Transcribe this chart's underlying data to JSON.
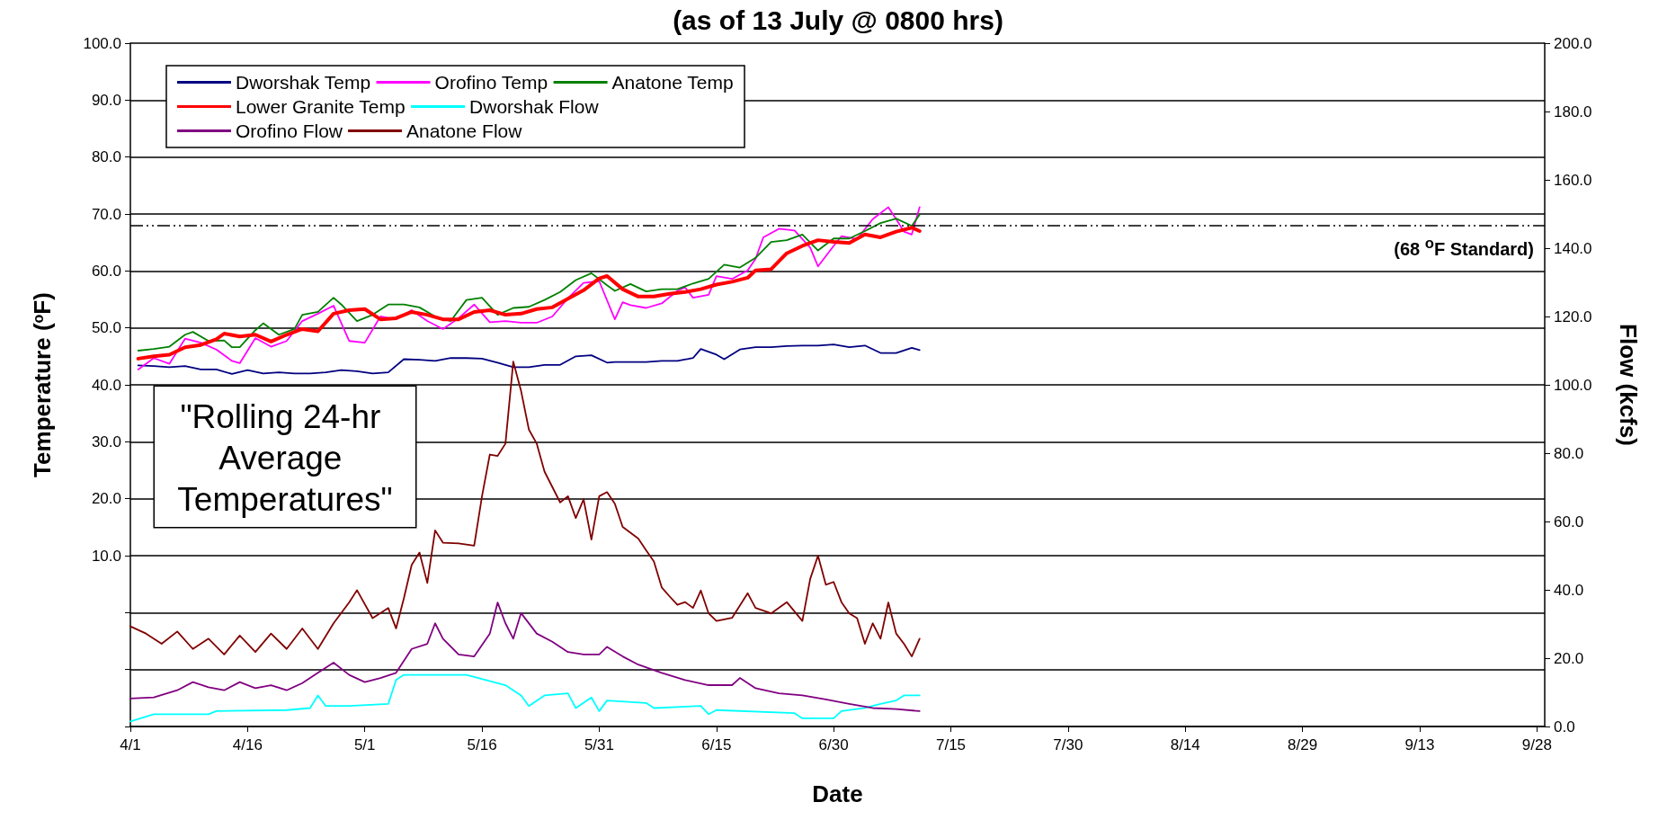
{
  "chart_data": {
    "type": "line",
    "title": "(as of 13 July @ 0800 hrs)",
    "xlabel": "Date",
    "ylabel": "Temperature ($^{o}$F)",
    "y2label": "Flow (kcfs)",
    "xlim": [
      "--04-01",
      "--09-29"
    ],
    "xticks": [
      {
        "value": "--04-01",
        "label": "4/1"
      },
      {
        "value": "--04-16",
        "label": "4/16"
      },
      {
        "value": "--05-01",
        "label": "5/1"
      },
      {
        "value": "--05-16",
        "label": "5/16"
      },
      {
        "value": "--05-31",
        "label": "5/31"
      },
      {
        "value": "--06-15",
        "label": "6/15"
      },
      {
        "value": "--06-30",
        "label": "6/30"
      },
      {
        "value": "--07-15",
        "label": "7/15"
      },
      {
        "value": "--07-30",
        "label": "7/30"
      },
      {
        "value": "--08-14",
        "label": "8/14"
      },
      {
        "value": "--08-29",
        "label": "8/29"
      },
      {
        "value": "--09-13",
        "label": "9/13"
      },
      {
        "value": "--09-28",
        "label": "9/28"
      }
    ],
    "ylim": [
      -20,
      100
    ],
    "yticks": [
      {
        "value": -10,
        "label": null
      },
      {
        "value": 0,
        "label": null
      },
      {
        "value": 10,
        "label": "10.0"
      },
      {
        "value": 20,
        "label": "20.0"
      },
      {
        "value": 30,
        "label": "30.0"
      },
      {
        "value": 40,
        "label": "40.0"
      },
      {
        "value": 50,
        "label": "50.0"
      },
      {
        "value": 60,
        "label": "60.0"
      },
      {
        "value": 70,
        "label": "70.0"
      },
      {
        "value": 80,
        "label": "80.0"
      },
      {
        "value": 90,
        "label": "90.0"
      },
      {
        "value": 100,
        "label": "100.0"
      }
    ],
    "y2lim": [
      0,
      200
    ],
    "y2ticks": [
      {
        "value": 0,
        "label": "0.0"
      },
      {
        "value": 20,
        "label": "20.0"
      },
      {
        "value": 40,
        "label": "40.0"
      },
      {
        "value": 60,
        "label": "60.0"
      },
      {
        "value": 80,
        "label": "80.0"
      },
      {
        "value": 100,
        "label": "100.0"
      },
      {
        "value": 120,
        "label": "120.0"
      },
      {
        "value": 140,
        "label": "140.0"
      },
      {
        "value": 160,
        "label": "160.0"
      },
      {
        "value": 180,
        "label": "180.0"
      },
      {
        "value": 200,
        "label": "200.0"
      }
    ],
    "grid": "y",
    "legend": "top left",
    "ref_lines": [
      {
        "axis": "y",
        "value": 68,
        "label": "(68 $^{o}$F Standard)",
        "line_style": "dashed",
        "color": "#000000"
      }
    ],
    "annotations": [
      "\"Rolling 24-hr Average Temperatures\""
    ],
    "series": [
      {
        "name": "Dworshak Temp",
        "color": "#000080",
        "x": [
          "--04-02",
          "--04-04",
          "--04-06",
          "--04-08",
          "--04-10",
          "--04-12",
          "--04-14",
          "--04-16",
          "--04-18",
          "--04-20",
          "--04-22",
          "--04-24",
          "--04-26",
          "--04-28",
          "--04-30",
          "--05-02",
          "--05-04",
          "--05-06",
          "--05-08",
          "--05-10",
          "--05-12",
          "--05-14",
          "--05-16",
          "--05-18",
          "--05-20",
          "--05-22",
          "--05-24",
          "--05-26",
          "--05-28",
          "--05-30",
          "--06-01",
          "--06-02",
          "--06-04",
          "--06-06",
          "--06-08",
          "--06-10",
          "--06-12",
          "--06-13",
          "--06-15",
          "--06-16",
          "--06-18",
          "--06-20",
          "--06-22",
          "--06-24",
          "--06-26",
          "--06-28",
          "--06-30",
          "--07-02",
          "--07-04",
          "--07-06",
          "--07-08",
          "--07-10",
          "--07-11"
        ],
        "values": [
          43.4,
          43.3,
          43.1,
          43.3,
          42.7,
          42.7,
          41.9,
          42.6,
          42.0,
          42.2,
          42.0,
          42.0,
          42.2,
          42.6,
          42.4,
          42.0,
          42.2,
          44.5,
          44.4,
          44.2,
          44.7,
          44.7,
          44.6,
          43.9,
          43.1,
          43.1,
          43.5,
          43.5,
          45.0,
          45.2,
          43.9,
          44.0,
          44.0,
          44.0,
          44.2,
          44.2,
          44.7,
          46.3,
          45.3,
          44.5,
          46.2,
          46.6,
          46.6,
          46.8,
          46.9,
          46.9,
          47.1,
          46.6,
          46.9,
          45.6,
          45.6,
          46.5,
          46.1
        ]
      },
      {
        "name": "Orofino Temp",
        "color": "#ff00ff",
        "x": [
          "--04-02",
          "--04-04",
          "--04-06",
          "--04-08",
          "--04-10",
          "--04-12",
          "--04-14",
          "--04-15",
          "--04-17",
          "--04-19",
          "--04-21",
          "--04-23",
          "--04-25",
          "--04-27",
          "--04-29",
          "--05-01",
          "--05-03",
          "--05-05",
          "--05-07",
          "--05-09",
          "--05-11",
          "--05-13",
          "--05-15",
          "--05-17",
          "--05-19",
          "--05-21",
          "--05-23",
          "--05-25",
          "--05-27",
          "--05-29",
          "--05-31",
          "--06-02",
          "--06-03",
          "--06-04",
          "--06-06",
          "--06-08",
          "--06-10",
          "--06-11",
          "--06-12",
          "--06-14",
          "--06-15",
          "--06-17",
          "--06-19",
          "--06-20",
          "--06-21",
          "--06-23",
          "--06-25",
          "--06-27",
          "--06-28",
          "--06-30",
          "--07-01",
          "--07-03",
          "--07-05",
          "--07-07",
          "--07-08",
          "--07-09",
          "--07-10",
          "--07-11"
        ],
        "values": [
          42.7,
          44.7,
          43.7,
          48.1,
          47.4,
          46.2,
          44.2,
          43.8,
          48.2,
          46.7,
          47.7,
          51.2,
          52.5,
          53.9,
          47.7,
          47.4,
          52.0,
          51.5,
          53.1,
          51.2,
          49.8,
          51.7,
          54.1,
          51.0,
          51.2,
          50.9,
          50.9,
          52.0,
          55.2,
          57.9,
          58.2,
          51.5,
          54.5,
          54.0,
          53.5,
          54.3,
          56.5,
          57.1,
          55.3,
          55.8,
          59.1,
          58.6,
          60.1,
          62.1,
          65.9,
          67.4,
          67.1,
          64.1,
          60.8,
          64.4,
          66.1,
          65.6,
          69.1,
          71.2,
          69.1,
          66.9,
          66.4,
          71.2
        ]
      },
      {
        "name": "Anatone Temp",
        "color": "#008000",
        "x": [
          "--04-02",
          "--04-04",
          "--04-06",
          "--04-08",
          "--04-09",
          "--04-11",
          "--04-13",
          "--04-14",
          "--04-15",
          "--04-17",
          "--04-18",
          "--04-20",
          "--04-22",
          "--04-23",
          "--04-25",
          "--04-27",
          "--04-28",
          "--04-30",
          "--05-02",
          "--05-04",
          "--05-06",
          "--05-08",
          "--05-10",
          "--05-12",
          "--05-14",
          "--05-16",
          "--05-18",
          "--05-20",
          "--05-22",
          "--05-24",
          "--05-26",
          "--05-28",
          "--05-30",
          "--06-01",
          "--06-02",
          "--06-04",
          "--06-06",
          "--06-08",
          "--06-10",
          "--06-12",
          "--06-14",
          "--06-16",
          "--06-18",
          "--06-20",
          "--06-22",
          "--06-24",
          "--06-26",
          "--06-28",
          "--06-30",
          "--07-02",
          "--07-04",
          "--07-06",
          "--07-08",
          "--07-10",
          "--07-11"
        ],
        "values": [
          46.0,
          46.3,
          46.7,
          48.8,
          49.3,
          47.7,
          47.8,
          46.6,
          46.6,
          49.6,
          50.8,
          48.8,
          49.8,
          52.3,
          52.8,
          55.3,
          54.1,
          51.2,
          52.3,
          54.1,
          54.1,
          53.6,
          52.0,
          51.2,
          54.9,
          55.3,
          52.3,
          53.5,
          53.7,
          54.9,
          56.3,
          58.4,
          59.6,
          57.5,
          56.5,
          57.7,
          56.4,
          56.8,
          56.8,
          57.8,
          58.6,
          61.1,
          60.6,
          62.3,
          65.1,
          65.4,
          66.4,
          63.6,
          65.7,
          65.7,
          67.0,
          68.4,
          69.2,
          67.9,
          69.9
        ]
      },
      {
        "name": "Lower Granite Temp",
        "color": "#ff0000",
        "x": [
          "--04-02",
          "--04-04",
          "--04-06",
          "--04-08",
          "--04-10",
          "--04-12",
          "--04-13",
          "--04-15",
          "--04-17",
          "--04-19",
          "--04-21",
          "--04-23",
          "--04-25",
          "--04-27",
          "--04-29",
          "--05-01",
          "--05-03",
          "--05-05",
          "--05-07",
          "--05-09",
          "--05-11",
          "--05-13",
          "--05-15",
          "--05-17",
          "--05-19",
          "--05-21",
          "--05-23",
          "--05-25",
          "--05-27",
          "--05-29",
          "--05-31",
          "--06-01",
          "--06-03",
          "--06-05",
          "--06-07",
          "--06-09",
          "--06-11",
          "--06-13",
          "--06-15",
          "--06-17",
          "--06-19",
          "--06-20",
          "--06-22",
          "--06-24",
          "--06-26",
          "--06-28",
          "--06-30",
          "--07-02",
          "--07-04",
          "--07-06",
          "--07-08",
          "--07-10",
          "--07-11"
        ],
        "values": [
          44.6,
          45.0,
          45.3,
          46.6,
          47.0,
          48.0,
          49.0,
          48.5,
          48.8,
          47.6,
          48.8,
          49.8,
          49.4,
          52.5,
          53.1,
          53.3,
          51.5,
          51.7,
          52.8,
          52.3,
          51.5,
          51.5,
          52.8,
          53.1,
          52.3,
          52.5,
          53.3,
          53.6,
          55.1,
          56.6,
          58.7,
          59.1,
          56.8,
          55.5,
          55.5,
          56.0,
          56.3,
          56.8,
          57.6,
          58.1,
          58.8,
          60.1,
          60.3,
          63.1,
          64.4,
          65.4,
          65.1,
          64.9,
          66.4,
          65.9,
          66.9,
          67.6,
          67.0
        ]
      },
      {
        "name": "Dworshak Flow",
        "color": "#00ffff",
        "axis": "y2",
        "x": [
          "--04-01",
          "--04-04",
          "--04-11",
          "--04-12",
          "--04-21",
          "--04-24",
          "--04-25",
          "--04-26",
          "--04-29",
          "--05-04",
          "--05-05",
          "--05-06",
          "--05-14",
          "--05-15",
          "--05-19",
          "--05-21",
          "--05-22",
          "--05-24",
          "--05-27",
          "--05-28",
          "--05-30",
          "--05-31",
          "--06-01",
          "--06-06",
          "--06-07",
          "--06-13",
          "--06-14",
          "--06-15",
          "--06-25",
          "--06-26",
          "--06-30",
          "--07-01",
          "--07-04",
          "--07-06",
          "--07-08",
          "--07-09",
          "--07-11"
        ],
        "values": [
          1.5,
          3.6,
          3.6,
          4.5,
          4.8,
          5.4,
          9.1,
          6.0,
          6.0,
          6.6,
          13.6,
          15.1,
          15.1,
          14.5,
          12.1,
          9.1,
          6.0,
          9.1,
          9.7,
          5.4,
          8.5,
          4.5,
          7.6,
          6.9,
          5.4,
          6.0,
          3.6,
          4.8,
          3.9,
          2.4,
          2.4,
          4.5,
          5.4,
          6.6,
          7.6,
          9.1,
          9.1
        ]
      },
      {
        "name": "Orofino Flow",
        "color": "#800080",
        "axis": "y2",
        "x": [
          "--04-01",
          "--04-04",
          "--04-07",
          "--04-09",
          "--04-11",
          "--04-13",
          "--04-15",
          "--04-17",
          "--04-19",
          "--04-21",
          "--04-23",
          "--04-25",
          "--04-27",
          "--04-29",
          "--05-01",
          "--05-03",
          "--05-05",
          "--05-07",
          "--05-09",
          "--05-10",
          "--05-11",
          "--05-13",
          "--05-15",
          "--05-17",
          "--05-18",
          "--05-19",
          "--05-20",
          "--05-21",
          "--05-23",
          "--05-25",
          "--05-27",
          "--05-29",
          "--05-31",
          "--06-01",
          "--06-03",
          "--06-05",
          "--06-08",
          "--06-11",
          "--06-14",
          "--06-17",
          "--06-18",
          "--06-20",
          "--06-23",
          "--06-26",
          "--06-29",
          "--07-02",
          "--07-05",
          "--07-08",
          "--07-11"
        ],
        "values": [
          8.2,
          8.5,
          10.6,
          13.0,
          11.5,
          10.6,
          13.0,
          11.2,
          12.1,
          10.6,
          12.7,
          15.7,
          18.7,
          15.1,
          13.0,
          14.2,
          15.7,
          22.7,
          24.2,
          30.2,
          25.7,
          21.1,
          20.5,
          27.2,
          36.3,
          30.2,
          25.7,
          33.2,
          27.2,
          24.8,
          21.8,
          21.1,
          21.1,
          23.3,
          20.5,
          18.1,
          15.7,
          13.6,
          12.1,
          12.1,
          14.2,
          11.2,
          9.7,
          9.1,
          7.9,
          6.6,
          5.4,
          5.1,
          4.5
        ]
      },
      {
        "name": "Anatone Flow",
        "color": "#800000",
        "axis": "y2",
        "x": [
          "--04-01",
          "--04-03",
          "--04-05",
          "--04-07",
          "--04-09",
          "--04-11",
          "--04-13",
          "--04-15",
          "--04-17",
          "--04-19",
          "--04-21",
          "--04-23",
          "--04-25",
          "--04-27",
          "--04-29",
          "--04-30",
          "--05-02",
          "--05-04",
          "--05-05",
          "--05-06",
          "--05-07",
          "--05-08",
          "--05-09",
          "--05-10",
          "--05-11",
          "--05-13",
          "--05-15",
          "--05-16",
          "--05-17",
          "--05-18",
          "--05-19",
          "--05-20",
          "--05-21",
          "--05-22",
          "--05-23",
          "--05-24",
          "--05-26",
          "--05-27",
          "--05-28",
          "--05-29",
          "--05-30",
          "--05-31",
          "--06-01",
          "--06-02",
          "--06-03",
          "--06-04",
          "--06-05",
          "--06-06",
          "--06-07",
          "--06-08",
          "--06-09",
          "--06-10",
          "--06-11",
          "--06-12",
          "--06-13",
          "--06-14",
          "--06-15",
          "--06-17",
          "--06-19",
          "--06-20",
          "--06-22",
          "--06-24",
          "--06-26",
          "--06-27",
          "--06-28",
          "--06-29",
          "--06-30",
          "--07-01",
          "--07-02",
          "--07-03",
          "--07-04",
          "--07-05",
          "--07-06",
          "--07-07",
          "--07-08",
          "--07-09",
          "--07-10",
          "--07-11"
        ],
        "values": [
          29.3,
          27.2,
          24.2,
          27.8,
          22.7,
          25.7,
          21.1,
          26.6,
          21.8,
          27.2,
          22.7,
          28.7,
          22.7,
          30.2,
          36.3,
          39.9,
          31.7,
          34.7,
          28.7,
          37.5,
          47.3,
          50.9,
          42.0,
          57.4,
          53.8,
          53.6,
          52.9,
          67.4,
          79.6,
          79.2,
          82.8,
          106.8,
          98.2,
          86.9,
          82.8,
          74.6,
          65.6,
          67.4,
          61.0,
          66.5,
          54.7,
          67.4,
          68.6,
          65.2,
          58.4,
          56.7,
          55.0,
          51.6,
          48.3,
          40.7,
          38.1,
          35.6,
          36.4,
          34.7,
          39.8,
          33.1,
          30.9,
          31.8,
          39.0,
          34.7,
          33.1,
          36.4,
          30.9,
          43.2,
          50.0,
          41.5,
          42.3,
          36.4,
          33.1,
          31.7,
          24.2,
          30.2,
          25.7,
          36.3,
          27.2,
          24.2,
          20.5,
          25.7
        ]
      }
    ]
  }
}
